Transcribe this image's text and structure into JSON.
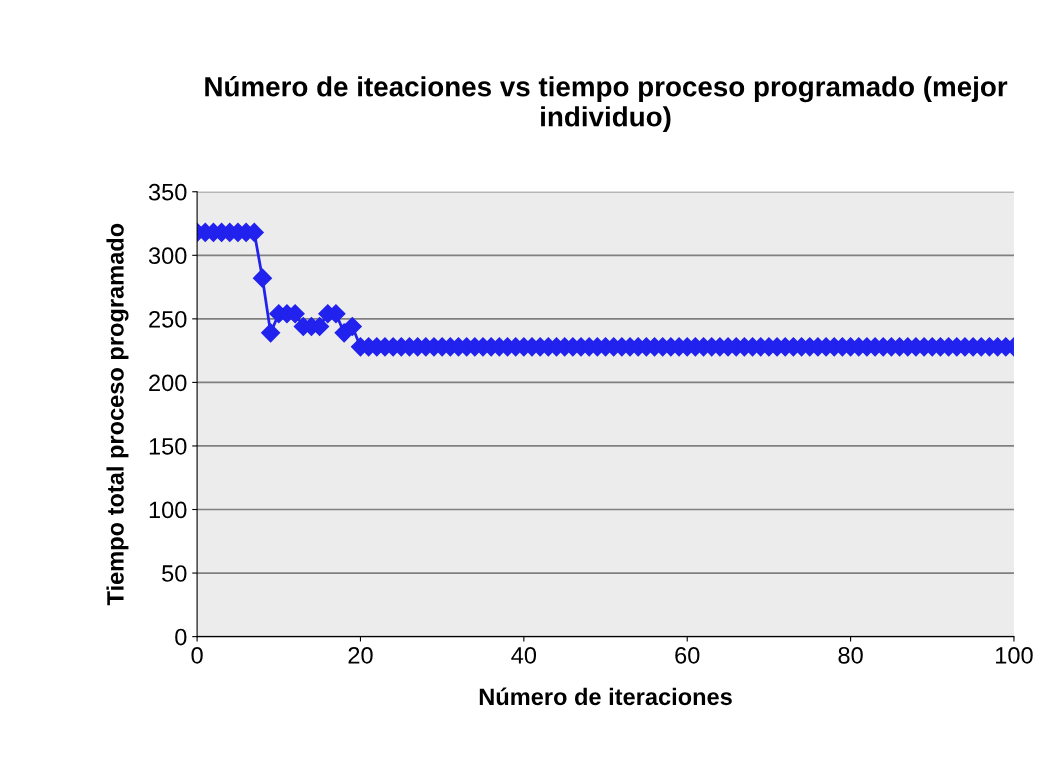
{
  "chart_data": {
    "type": "line",
    "title": "Número de iteaciones vs tiempo proceso programado (mejor individuo)",
    "xlabel": "Número de iteraciones",
    "ylabel": "Tiempo total proceso programado",
    "x": [
      0,
      1,
      2,
      3,
      4,
      5,
      6,
      7,
      8,
      9,
      10,
      11,
      12,
      13,
      14,
      15,
      16,
      17,
      18,
      19,
      20,
      21,
      22,
      23,
      24,
      25,
      26,
      27,
      28,
      29,
      30,
      31,
      32,
      33,
      34,
      35,
      36,
      37,
      38,
      39,
      40,
      41,
      42,
      43,
      44,
      45,
      46,
      47,
      48,
      49,
      50,
      51,
      52,
      53,
      54,
      55,
      56,
      57,
      58,
      59,
      60,
      61,
      62,
      63,
      64,
      65,
      66,
      67,
      68,
      69,
      70,
      71,
      72,
      73,
      74,
      75,
      76,
      77,
      78,
      79,
      80,
      81,
      82,
      83,
      84,
      85,
      86,
      87,
      88,
      89,
      90,
      91,
      92,
      93,
      94,
      95,
      96,
      97,
      98,
      99,
      100
    ],
    "series": [
      {
        "color": "#2222ee",
        "values": [
          318,
          318,
          318,
          318,
          318,
          318,
          318,
          318,
          282,
          239,
          254,
          254,
          254,
          244,
          244,
          244,
          254,
          254,
          239,
          244,
          228,
          228,
          228,
          228,
          228,
          228,
          228,
          228,
          228,
          228,
          228,
          228,
          228,
          228,
          228,
          228,
          228,
          228,
          228,
          228,
          228,
          228,
          228,
          228,
          228,
          228,
          228,
          228,
          228,
          228,
          228,
          228,
          228,
          228,
          228,
          228,
          228,
          228,
          228,
          228,
          228,
          228,
          228,
          228,
          228,
          228,
          228,
          228,
          228,
          228,
          228,
          228,
          228,
          228,
          228,
          228,
          228,
          228,
          228,
          228,
          228,
          228,
          228,
          228,
          228,
          228,
          228,
          228,
          228,
          228,
          228,
          228,
          228,
          228,
          228,
          228,
          228,
          228,
          228,
          228,
          228
        ]
      }
    ],
    "xlim": [
      0,
      100
    ],
    "xticks": [
      0,
      20,
      40,
      60,
      80,
      100
    ],
    "ylim": [
      0,
      350
    ],
    "yticks": [
      0,
      50,
      100,
      150,
      200,
      250,
      300,
      350
    ],
    "grid": "y",
    "legend": false,
    "marker": "diamond",
    "line_style": "solid"
  }
}
